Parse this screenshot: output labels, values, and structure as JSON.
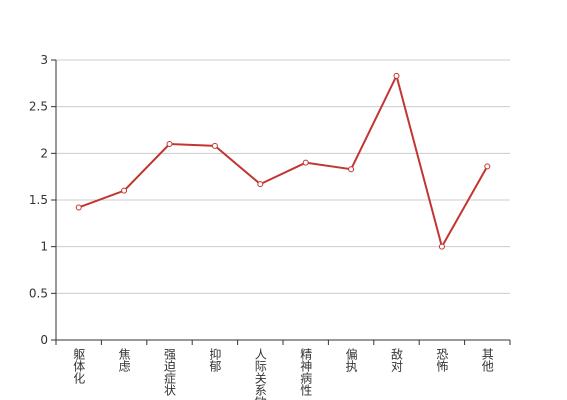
{
  "chart_data": {
    "type": "line",
    "categories": [
      "躯体化",
      "焦虑",
      "强迫症状",
      "抑郁",
      "人际关系敏感",
      "精神病性",
      "偏执",
      "敌对",
      "恐怖",
      "其他"
    ],
    "values": [
      1.42,
      1.6,
      2.1,
      2.08,
      1.67,
      1.9,
      1.83,
      2.83,
      1.0,
      1.86
    ],
    "color": "#c23531",
    "ylim": [
      0,
      3
    ],
    "yticks": [
      0,
      0.5,
      1,
      1.5,
      2,
      2.5,
      3
    ],
    "grid": true
  }
}
